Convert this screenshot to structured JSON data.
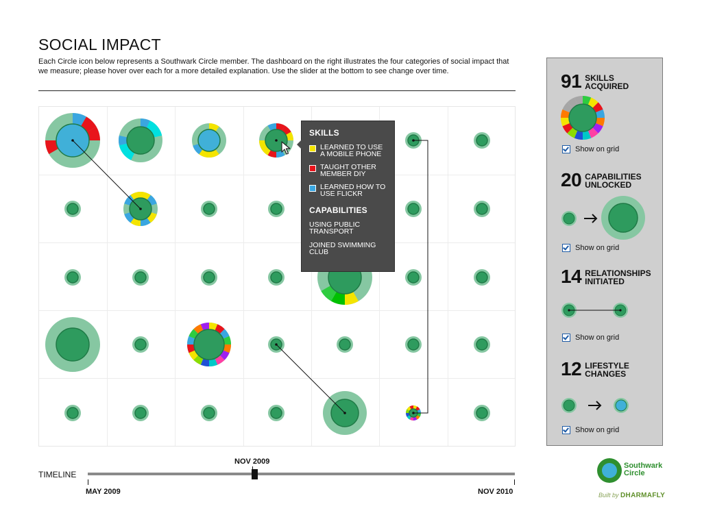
{
  "header": {
    "title": "SOCIAL IMPACT",
    "intro": "Each Circle icon below represents a Southwark Circle member. The dashboard on the right illustrates the four categories of social impact that we measure; please hover over each for a more detailed explanation. Use the slider at the bottom to see change over time."
  },
  "colors": {
    "member_inner": "#2e9b5e",
    "member_outer": "#86c7a2",
    "member_stroke": "#1f7a46",
    "lifestyle_fill": "#40b0d8",
    "accent_green": "#2f8f2f",
    "panel_bg": "#cfcfcf",
    "tooltip_bg": "#4a4a4a"
  },
  "tooltip": {
    "skills_heading": "SKILLS",
    "skills": [
      {
        "label": "LEARNED TO USE A MOBILE PHONE",
        "color": "#f4e400"
      },
      {
        "label": "TAUGHT OTHER MEMBER DIY",
        "color": "#e8141b"
      },
      {
        "label": "LEARNED HOW TO USE FLICKR",
        "color": "#3aa6e0"
      }
    ],
    "capabilities_heading": "CAPABILITIES",
    "capabilities": [
      "USING PUBLIC TRANSPORT",
      "JOINED SWIMMING CLUB"
    ]
  },
  "dashboard": {
    "skills": {
      "count": "91",
      "label": "SKILLS ACQUIRED",
      "show_label": "Show on grid",
      "icon": "skills-ring-icon"
    },
    "capabilities": {
      "count": "20",
      "label": "CAPABILITIES UNLOCKED",
      "show_label": "Show on grid",
      "icon": "capability-grow-icon"
    },
    "relationships": {
      "count": "14",
      "label": "RELATIONSHIPS INITIATED",
      "show_label": "Show on grid",
      "icon": "relationship-link-icon"
    },
    "lifestyle": {
      "count": "12",
      "label": "LIFESTYLE CHANGES",
      "show_label": "Show on grid",
      "icon": "lifestyle-change-icon"
    }
  },
  "timeline": {
    "label": "TIMELINE",
    "start": "MAY 2009",
    "end": "NOV 2010",
    "current": "NOV 2009",
    "position": 0.39
  },
  "logo": {
    "line1": "Southwark",
    "line2": "Circle"
  },
  "built_by": {
    "prefix": "Built by",
    "name": "DHARMAFLY"
  }
}
